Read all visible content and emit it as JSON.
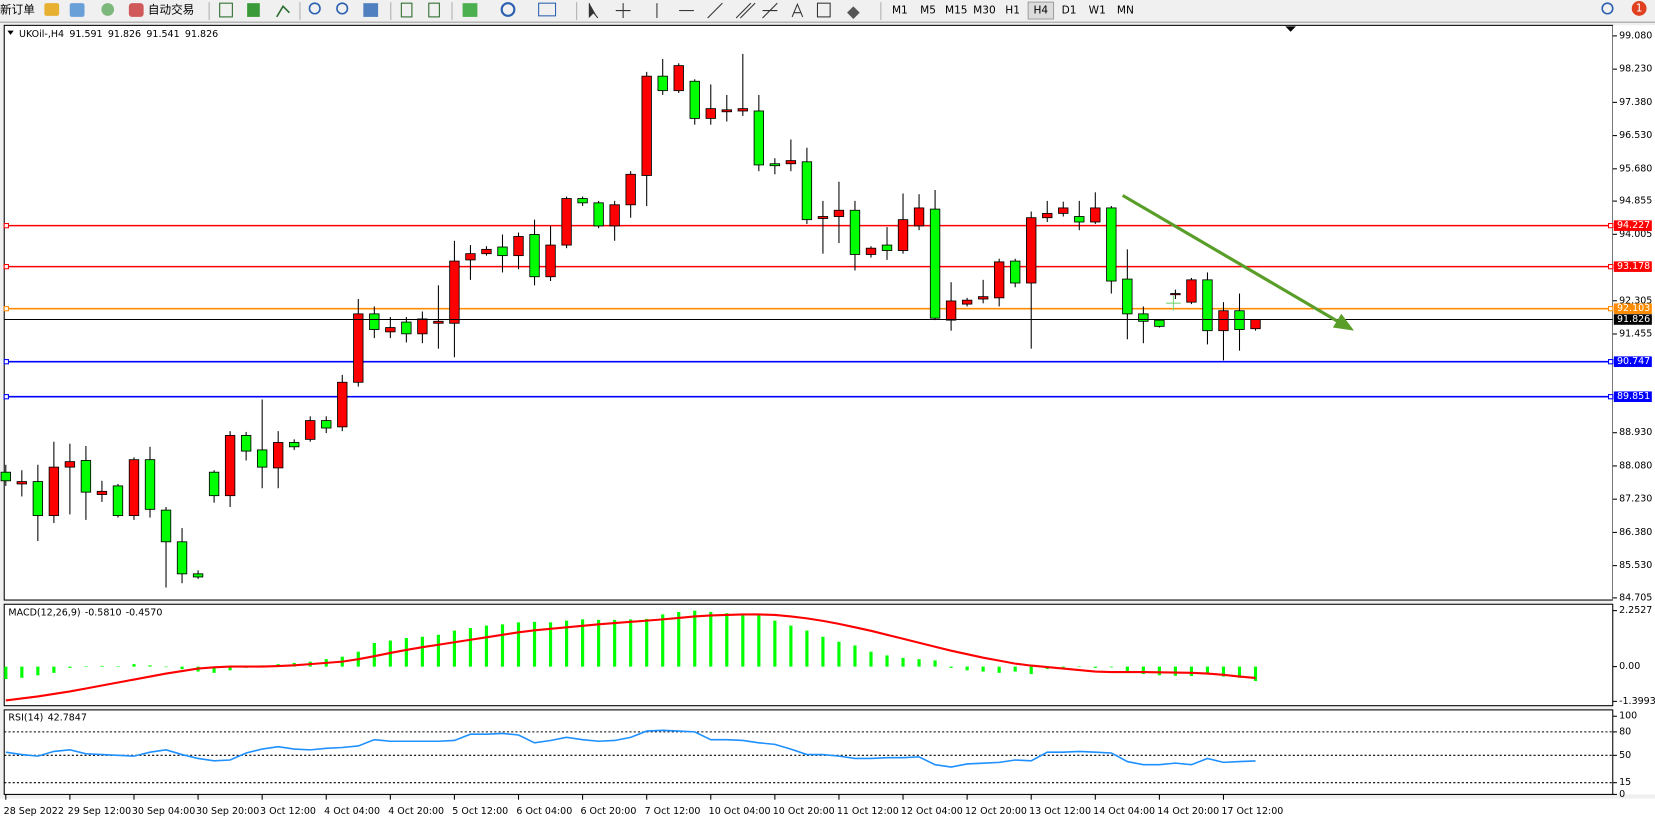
{
  "toolbar": {
    "new_order": "新订单",
    "auto_trading": "自动交易",
    "timeframes": [
      "M1",
      "M5",
      "M15",
      "M30",
      "H1",
      "H4",
      "D1",
      "W1",
      "MN"
    ],
    "notifications": "1"
  },
  "chart_data": [
    {
      "type": "candlestick",
      "symbol": "UKOil-,H4",
      "categories": [
        "28 Sep 2022",
        null,
        null,
        null,
        "29 Sep 12:00",
        null,
        null,
        null,
        "30 Sep 04:00",
        null,
        null,
        null,
        "30 Sep 20:00",
        null,
        null,
        null,
        "3 Oct 12:00",
        null,
        null,
        null,
        "4 Oct 04:00",
        null,
        null,
        null,
        "4 Oct 20:00",
        null,
        null,
        null,
        "5 Oct 12:00",
        null,
        null,
        null,
        "6 Oct 04:00",
        null,
        null,
        null,
        "6 Oct 20:00",
        null,
        null,
        null,
        "7 Oct 12:00",
        null,
        null,
        null,
        "10 Oct 04:00",
        null,
        null,
        null,
        "10 Oct 20:00",
        null,
        null,
        null,
        "11 Oct 12:00",
        null,
        null,
        null,
        "12 Oct 04:00",
        null,
        null,
        null,
        "12 Oct 20:00",
        null,
        null,
        null,
        "13 Oct 12:00",
        null,
        null,
        null,
        "14 Oct 04:00",
        null,
        null,
        null,
        "14 Oct 20:00",
        null,
        null,
        null,
        "17 Oct 12:00",
        null,
        null
      ],
      "open": [
        87.92,
        87.62,
        87.68,
        86.81,
        88.05,
        88.22,
        87.35,
        87.57,
        86.81,
        88.24,
        86.95,
        86.14,
        85.32,
        87.92,
        87.32,
        88.86,
        88.49,
        88.03,
        88.68,
        88.76,
        89.24,
        89.08,
        90.22,
        91.97,
        91.51,
        91.76,
        91.46,
        91.73,
        91.73,
        93.35,
        93.51,
        93.68,
        93.46,
        94.0,
        92.92,
        93.73,
        94.92,
        94.81,
        94.22,
        94.76,
        95.51,
        98.05,
        97.68,
        97.92,
        96.97,
        97.14,
        97.16,
        97.16,
        95.81,
        95.81,
        95.86,
        94.41,
        94.46,
        94.62,
        93.49,
        93.73,
        93.59,
        94.22,
        94.65,
        91.81,
        92.22,
        92.35,
        92.38,
        93.32,
        92.76,
        94.43,
        94.54,
        94.46,
        94.32,
        94.68,
        92.86,
        91.97,
        91.81,
        92.46,
        92.27,
        92.84,
        91.54,
        92.05,
        91.591
      ],
      "high": [
        88.11,
        87.97,
        88.11,
        88.7,
        88.65,
        88.59,
        87.7,
        87.62,
        88.3,
        88.57,
        87.03,
        86.49,
        85.41,
        87.97,
        88.97,
        88.95,
        89.78,
        88.97,
        88.76,
        89.35,
        89.35,
        90.41,
        92.35,
        92.16,
        91.89,
        91.89,
        92.03,
        92.7,
        93.84,
        93.73,
        93.7,
        94.0,
        94.05,
        94.38,
        94.22,
        94.97,
        94.97,
        94.86,
        94.86,
        95.62,
        98.16,
        98.49,
        98.38,
        97.97,
        97.84,
        97.57,
        98.62,
        97.57,
        95.95,
        96.43,
        96.22,
        94.86,
        95.35,
        94.86,
        93.7,
        94.19,
        95.05,
        95.03,
        95.14,
        92.78,
        92.38,
        92.84,
        93.38,
        93.38,
        94.59,
        94.86,
        94.84,
        94.86,
        95.08,
        94.73,
        93.62,
        92.16,
        91.84,
        92.59,
        92.89,
        93.03,
        92.27,
        92.49,
        91.826
      ],
      "low": [
        87.57,
        87.3,
        86.16,
        86.62,
        86.84,
        86.7,
        87.16,
        86.76,
        86.7,
        86.76,
        84.97,
        85.08,
        85.19,
        87.14,
        87.03,
        88.22,
        87.51,
        87.51,
        88.49,
        88.7,
        88.92,
        88.97,
        90.11,
        91.35,
        91.35,
        91.24,
        91.22,
        91.08,
        90.86,
        92.84,
        93.46,
        93.03,
        93.11,
        92.7,
        92.81,
        93.65,
        94.73,
        94.16,
        93.84,
        94.43,
        94.73,
        97.57,
        97.62,
        96.81,
        96.81,
        96.89,
        97.03,
        95.62,
        95.54,
        95.62,
        94.27,
        93.51,
        93.78,
        93.08,
        93.41,
        93.35,
        93.51,
        94.11,
        91.81,
        91.54,
        92.16,
        92.24,
        92.16,
        92.65,
        91.08,
        94.32,
        94.46,
        94.11,
        94.27,
        92.49,
        91.32,
        91.22,
        91.62,
        92.35,
        92.22,
        91.19,
        90.78,
        91.03,
        91.541
      ],
      "close": [
        87.7,
        87.68,
        86.81,
        88.05,
        88.19,
        87.41,
        87.43,
        86.81,
        88.24,
        86.97,
        86.14,
        85.32,
        85.24,
        87.32,
        88.86,
        88.46,
        88.05,
        88.68,
        88.57,
        89.24,
        89.05,
        90.22,
        91.97,
        91.57,
        91.62,
        91.46,
        91.84,
        91.78,
        93.32,
        93.51,
        93.62,
        93.46,
        93.95,
        92.92,
        93.73,
        94.92,
        94.81,
        94.22,
        94.76,
        95.54,
        98.05,
        97.68,
        98.32,
        96.97,
        97.22,
        97.19,
        97.22,
        95.78,
        95.76,
        95.89,
        94.38,
        94.46,
        94.62,
        93.49,
        93.65,
        93.59,
        94.38,
        94.68,
        91.86,
        92.3,
        92.32,
        92.41,
        93.3,
        92.76,
        94.43,
        94.54,
        94.68,
        94.32,
        94.68,
        92.81,
        91.97,
        91.78,
        91.65,
        92.49,
        92.84,
        91.54,
        92.05,
        91.57,
        91.826
      ],
      "up_color": "#ff0000",
      "down_color": "#00ff00",
      "price_line_color": "#000000",
      "levels": [
        {
          "value": 94.227,
          "color": "#ff0000"
        },
        {
          "value": 93.178,
          "color": "#ff0000"
        },
        {
          "value": 92.103,
          "color": "#ff8c00"
        },
        {
          "value": 90.747,
          "color": "#0000ff"
        },
        {
          "value": 89.851,
          "color": "#0000ff"
        }
      ],
      "ylim": [
        84.65,
        99.35
      ],
      "yticks": [
        {
          "value": 99.08,
          "label": "99.080"
        },
        {
          "value": 98.23,
          "label": "98.230"
        },
        {
          "value": 97.38,
          "label": "97.380"
        },
        {
          "value": 96.53,
          "label": "96.530"
        },
        {
          "value": 95.68,
          "label": "95.680"
        },
        94.855,
        94.005,
        92.305,
        91.455,
        {
          "value": 88.93,
          "label": "88.930"
        },
        {
          "value": 88.08,
          "label": "88.080"
        },
        {
          "value": 87.23,
          "label": "87.230"
        },
        {
          "value": 86.38,
          "label": "86.380"
        },
        {
          "value": 85.53,
          "label": "85.530"
        },
        84.705
      ]
    },
    {
      "type": "macd",
      "title": "MACD(12,26,9)",
      "main": {
        "values": [
          -0.5,
          -0.45,
          -0.35,
          -0.25,
          -0.05,
          0.02,
          0.03,
          0.02,
          0.1,
          0.05,
          -0.02,
          -0.1,
          -0.2,
          -0.25,
          -0.15,
          -0.05,
          0.05,
          0.1,
          0.15,
          0.2,
          0.3,
          0.4,
          0.6,
          0.95,
          1.05,
          1.15,
          1.2,
          1.28,
          1.45,
          1.55,
          1.65,
          1.7,
          1.78,
          1.8,
          1.78,
          1.85,
          1.9,
          1.88,
          1.88,
          1.9,
          1.92,
          2.1,
          2.2,
          2.25,
          2.2,
          2.15,
          2.12,
          2.1,
          1.85,
          1.65,
          1.45,
          1.2,
          1.0,
          0.85,
          0.6,
          0.45,
          0.35,
          0.3,
          0.25,
          -0.05,
          -0.15,
          -0.2,
          -0.25,
          -0.2,
          -0.3,
          -0.1,
          -0.05,
          -0.02,
          -0.05,
          -0.03,
          -0.2,
          -0.3,
          -0.35,
          -0.37,
          -0.38,
          -0.3,
          -0.4,
          -0.45,
          -0.581
        ],
        "color": "#00ff00",
        "label": "-0.5810"
      },
      "signal": {
        "values": [
          -1.36,
          -1.28,
          -1.2,
          -1.1,
          -1.0,
          -0.88,
          -0.76,
          -0.64,
          -0.52,
          -0.4,
          -0.28,
          -0.18,
          -0.08,
          -0.03,
          0,
          0,
          0,
          0.02,
          0.05,
          0.1,
          0.15,
          0.2,
          0.3,
          0.42,
          0.55,
          0.67,
          0.78,
          0.88,
          0.98,
          1.08,
          1.18,
          1.28,
          1.38,
          1.46,
          1.52,
          1.58,
          1.64,
          1.7,
          1.75,
          1.8,
          1.85,
          1.9,
          1.96,
          2.02,
          2.06,
          2.08,
          2.1,
          2.1,
          2.08,
          2.02,
          1.94,
          1.84,
          1.72,
          1.58,
          1.44,
          1.28,
          1.12,
          0.96,
          0.8,
          0.64,
          0.5,
          0.36,
          0.24,
          0.12,
          0.04,
          -0.02,
          -0.08,
          -0.14,
          -0.2,
          -0.22,
          -0.22,
          -0.22,
          -0.23,
          -0.24,
          -0.25,
          -0.28,
          -0.33,
          -0.4,
          -0.457
        ],
        "color": "#ff0000",
        "label": "-0.4570"
      },
      "ylim": [
        -1.572,
        2.508
      ],
      "yticks": [
        2.2527,
        {
          "value": 0,
          "label": "0.00"
        },
        -1.3993
      ]
    },
    {
      "type": "rsi",
      "title": "RSI(14)",
      "color": "#1e90ff",
      "values": [
        54,
        51,
        49,
        55,
        57,
        52,
        51,
        50,
        49,
        54,
        57,
        51,
        46,
        43,
        44,
        53,
        58,
        61,
        58,
        57,
        59,
        60,
        62,
        70,
        68,
        68,
        68,
        68,
        69,
        77,
        77,
        78,
        76,
        66,
        69,
        73,
        70,
        68,
        69,
        73,
        81,
        82,
        81,
        80,
        70,
        70,
        69,
        66,
        64,
        58,
        51,
        51,
        49,
        46,
        46,
        47,
        47,
        48,
        38,
        35,
        39,
        40,
        41,
        44,
        43,
        54,
        54,
        55,
        54,
        53,
        42,
        38,
        38,
        40,
        38,
        46,
        41,
        42,
        42.7847
      ],
      "levels": [
        80,
        50,
        15
      ],
      "ylim": [
        0,
        108.1
      ],
      "yticks": [
        100,
        80,
        50,
        15,
        0
      ]
    }
  ]
}
